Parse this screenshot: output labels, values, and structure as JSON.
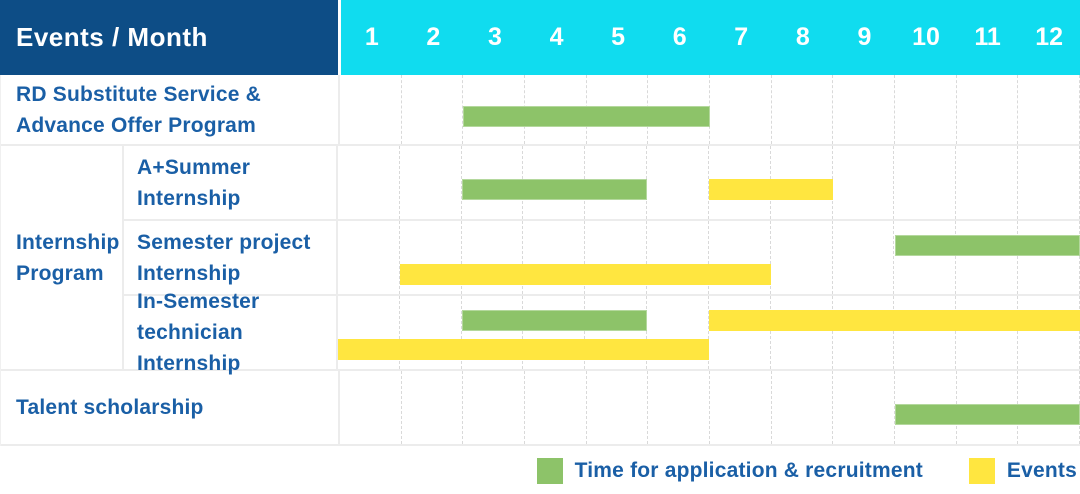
{
  "header": {
    "title": "Events / Month",
    "months": [
      "1",
      "2",
      "3",
      "4",
      "5",
      "6",
      "7",
      "8",
      "9",
      "10",
      "11",
      "12"
    ]
  },
  "colors": {
    "recruitment": "#8DC369",
    "event": "#FFE640",
    "header_bg": "#0D4D86",
    "months_bg": "#10DCEF",
    "label_text": "#1A5FA6",
    "grid_line": "#ECECEC",
    "month_line": "#D9D9D9"
  },
  "ui": {
    "group_label_lines": [
      "Internship",
      "Program"
    ],
    "rows": [
      {
        "label_lines": [
          "RD Substitute Service &",
          "Advance Offer Program"
        ],
        "group": null,
        "bars": [
          {
            "kind": "recruitment",
            "start": 3,
            "end": 6,
            "lane": "mid"
          }
        ]
      },
      {
        "label_lines": [
          "A+Summer",
          "Internship"
        ],
        "group": "Internship Program",
        "bars": [
          {
            "kind": "recruitment",
            "start": 3,
            "end": 5,
            "lane": "mid"
          },
          {
            "kind": "event",
            "start": 7,
            "end": 8,
            "lane": "mid"
          }
        ]
      },
      {
        "label_lines": [
          "Semester project",
          "Internship"
        ],
        "group": "Internship Program",
        "bars": [
          {
            "kind": "recruitment",
            "start": 10,
            "end": 12,
            "lane": "top"
          },
          {
            "kind": "event",
            "start": 2,
            "end": 7,
            "lane": "bottom"
          }
        ]
      },
      {
        "label_lines": [
          "In-Semester",
          "technician Internship"
        ],
        "group": "Internship Program",
        "bars": [
          {
            "kind": "recruitment",
            "start": 3,
            "end": 5,
            "lane": "top"
          },
          {
            "kind": "event",
            "start": 7,
            "end": 12,
            "lane": "top"
          },
          {
            "kind": "event",
            "start": 1,
            "end": 6,
            "lane": "bottom"
          }
        ]
      },
      {
        "label_lines": [
          "Talent scholarship"
        ],
        "group": null,
        "bars": [
          {
            "kind": "recruitment",
            "start": 10,
            "end": 12,
            "lane": "mid"
          }
        ]
      }
    ]
  },
  "legend": {
    "items": [
      {
        "kind": "recruitment",
        "label": "Time for application & recruitment"
      },
      {
        "kind": "event",
        "label": "Events"
      }
    ]
  },
  "chart_data": {
    "type": "table",
    "title": "Events / Month",
    "columns": [
      1,
      2,
      3,
      4,
      5,
      6,
      7,
      8,
      9,
      10,
      11,
      12
    ],
    "rows": [
      {
        "event": "RD Substitute Service & Advance Offer Program",
        "group": null,
        "recruitment_month_spans": [
          [
            3,
            6
          ]
        ],
        "event_month_spans": []
      },
      {
        "event": "A+Summer Internship",
        "group": "Internship Program",
        "recruitment_month_spans": [
          [
            3,
            5
          ]
        ],
        "event_month_spans": [
          [
            7,
            8
          ]
        ]
      },
      {
        "event": "Semester project Internship",
        "group": "Internship Program",
        "recruitment_month_spans": [
          [
            10,
            12
          ]
        ],
        "event_month_spans": [
          [
            2,
            7
          ]
        ]
      },
      {
        "event": "In-Semester technician Internship",
        "group": "Internship Program",
        "recruitment_month_spans": [
          [
            3,
            5
          ]
        ],
        "event_month_spans": [
          [
            1,
            6
          ],
          [
            7,
            12
          ]
        ]
      },
      {
        "event": "Talent scholarship",
        "group": null,
        "recruitment_month_spans": [
          [
            10,
            12
          ]
        ],
        "event_month_spans": []
      }
    ],
    "legend": {
      "green": "Time for application & recruitment",
      "yellow": "Events"
    }
  }
}
